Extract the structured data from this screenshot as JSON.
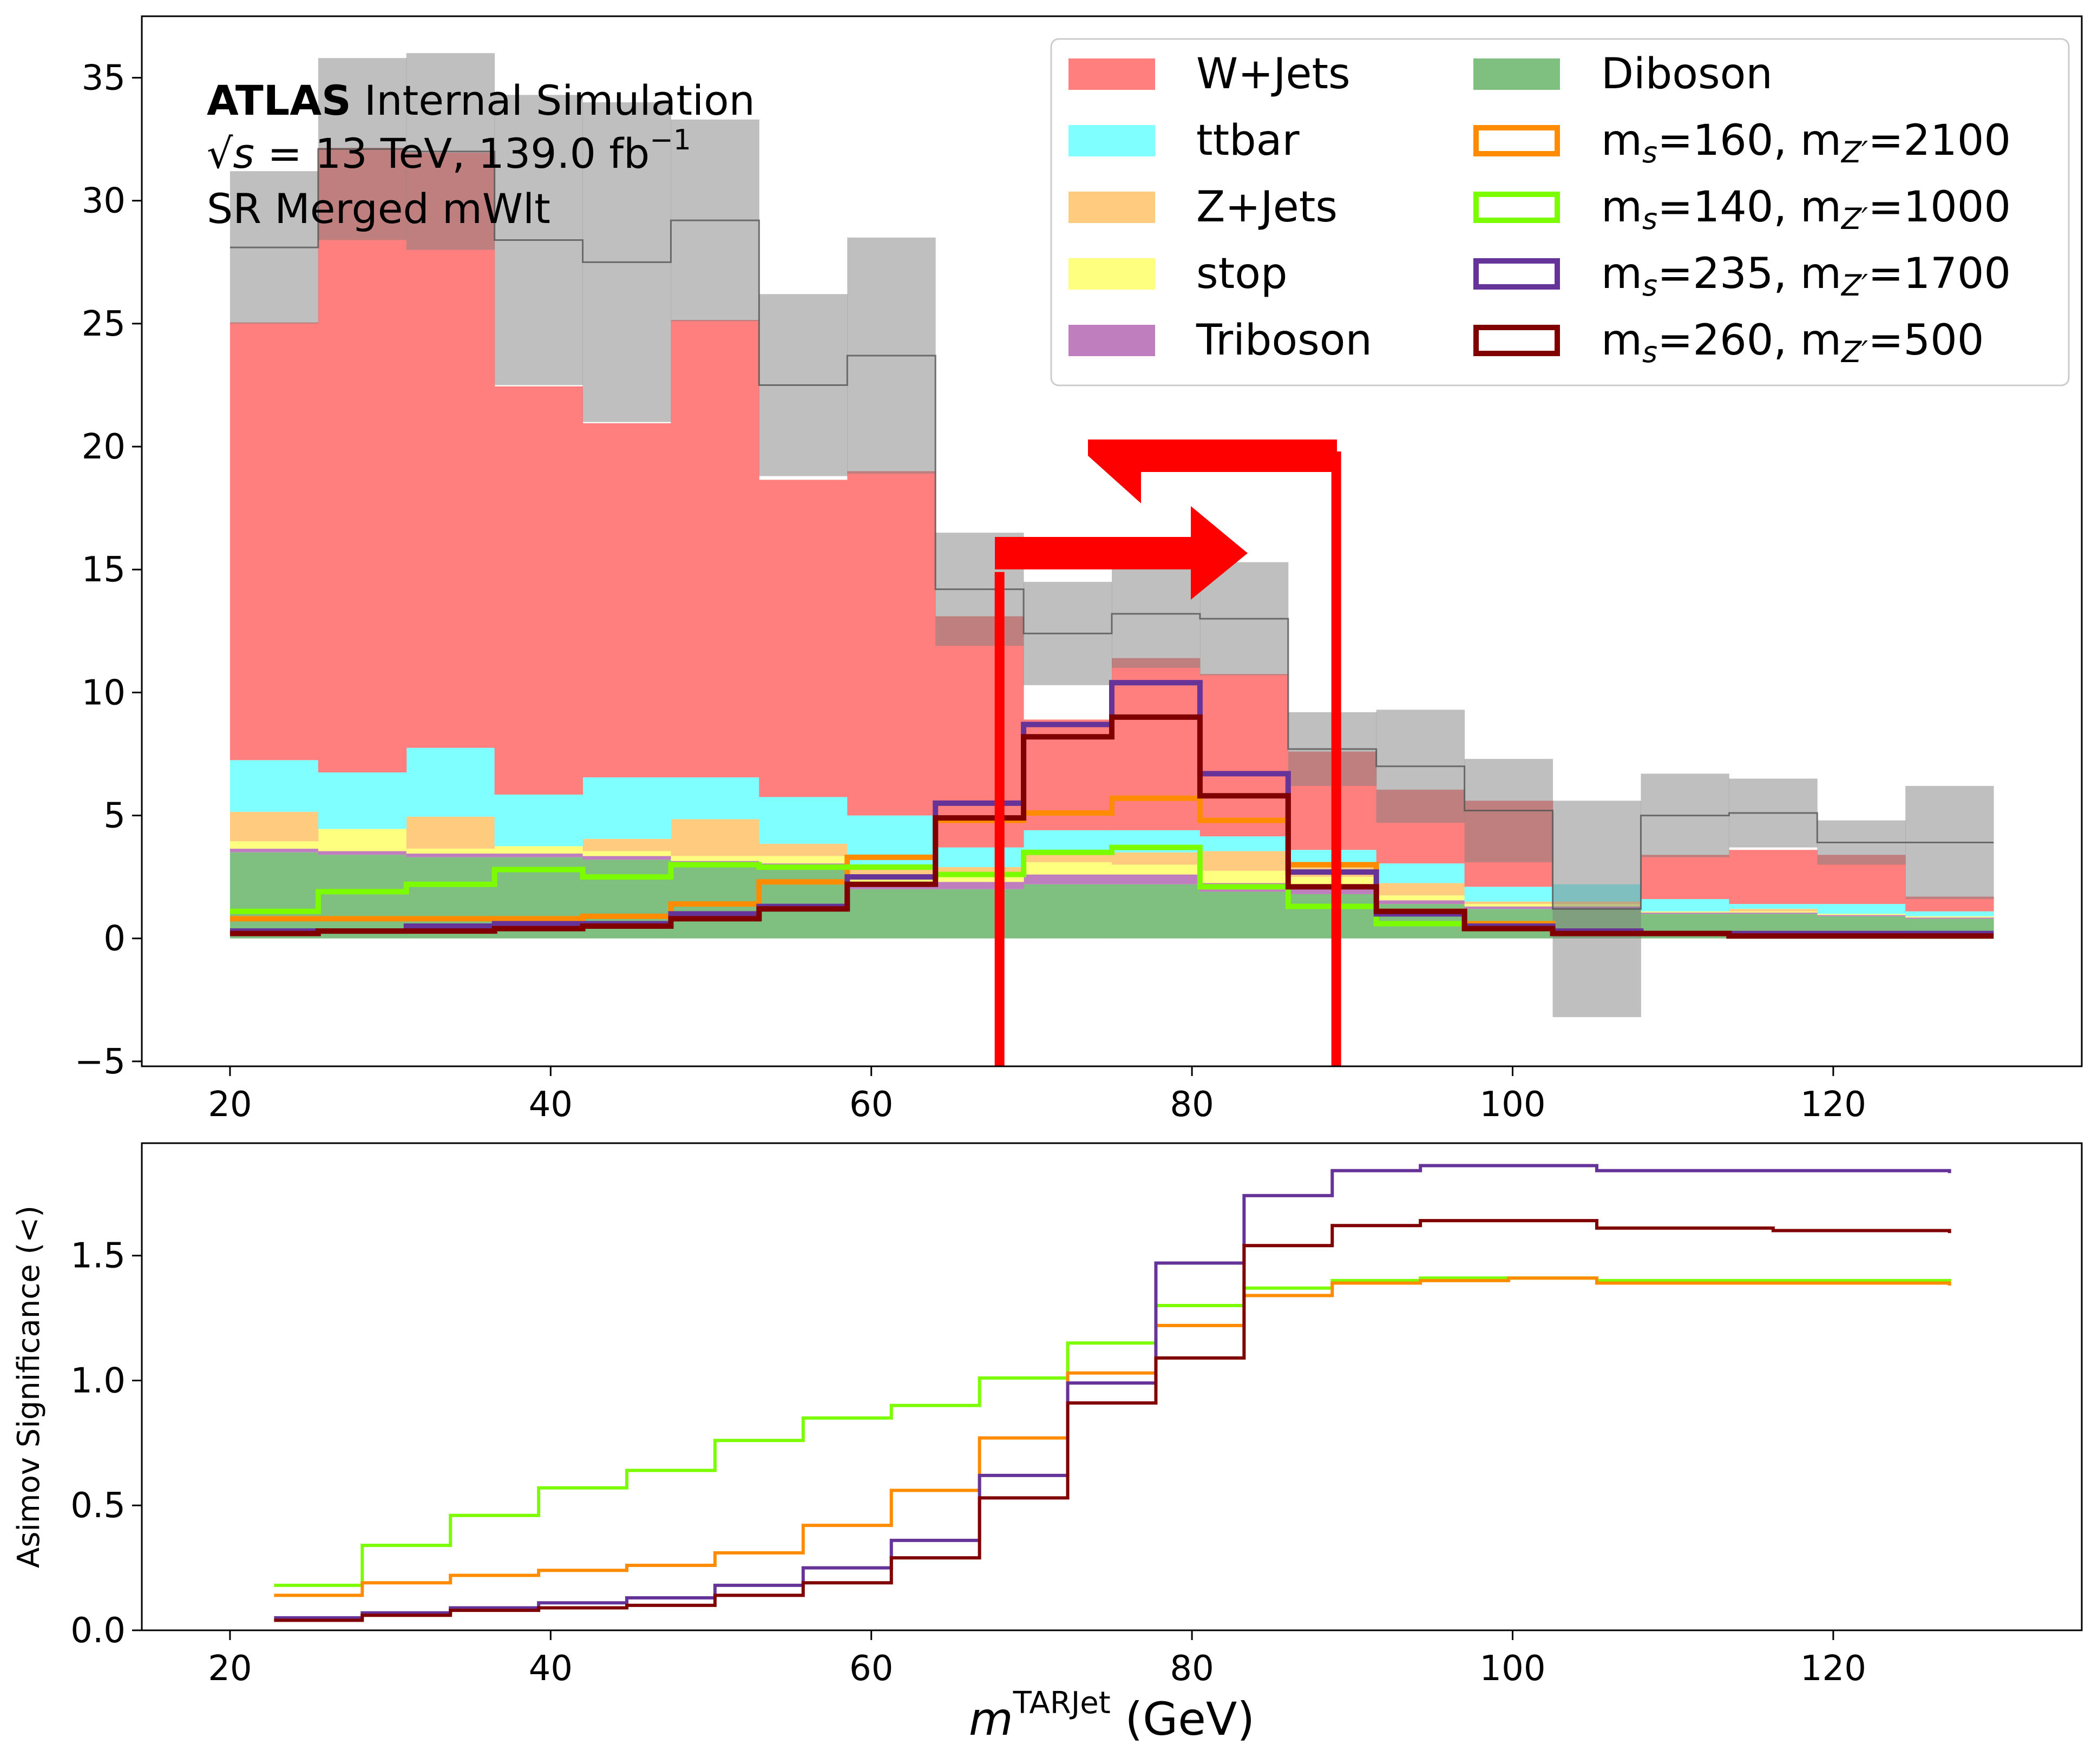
{
  "annotation": {
    "experiment": "ATLAS",
    "status": "Internal Simulation",
    "energy_prefix": "√s",
    "energy_value": " = 13 TeV, 139.0 fb",
    "lumi_exp": "−1",
    "region": "SR Merged mWlt"
  },
  "chart_data": [
    {
      "type": "stacked histogram",
      "xlim": [
        14.5,
        135.5
      ],
      "ylim": [
        -5.2,
        37.5
      ],
      "xticks": [
        20,
        40,
        60,
        80,
        100,
        120
      ],
      "yticks": [
        -5,
        0,
        5,
        10,
        15,
        20,
        25,
        30,
        35
      ],
      "ytick_labels": [
        "−5",
        "0",
        "5",
        "10",
        "15",
        "20",
        "25",
        "30",
        "35"
      ],
      "bin_edges": [
        20,
        25.5,
        31,
        36.5,
        42,
        47.5,
        53,
        58.5,
        64,
        69.5,
        75,
        80.5,
        86,
        91.5,
        97,
        102.5,
        108,
        113.5,
        119,
        124.5,
        130
      ],
      "stack": [
        {
          "name": "Diboson",
          "color": "#7fbf7f",
          "values": [
            3.5,
            3.4,
            3.3,
            3.3,
            3.2,
            3.0,
            2.9,
            2.0,
            2.0,
            2.2,
            2.2,
            1.9,
            1.8,
            1.4,
            1.2,
            1.2,
            1.0,
            1.0,
            0.9,
            0.8
          ]
        },
        {
          "name": "Triboson",
          "color": "#bf7fbf",
          "values": [
            0.15,
            0.15,
            0.15,
            0.15,
            0.15,
            0.15,
            0.15,
            0.2,
            0.3,
            0.4,
            0.4,
            0.35,
            0.3,
            0.15,
            0.1,
            0.1,
            0.05,
            0.05,
            0.05,
            0.05
          ]
        },
        {
          "name": "stop",
          "color": "#ffff7f",
          "values": [
            0.3,
            0.9,
            0.2,
            0.3,
            0.2,
            0.2,
            0.3,
            0.3,
            0.3,
            0.5,
            0.4,
            0.5,
            0.4,
            0.2,
            0.1,
            0.1,
            0.05,
            0.05,
            0.05,
            0.05
          ]
        },
        {
          "name": "Z+Jets",
          "color": "#ffcc7f",
          "values": [
            1.2,
            0.0,
            1.3,
            0.0,
            0.5,
            1.5,
            0.5,
            0.4,
            0.3,
            0.4,
            0.5,
            0.8,
            0.5,
            0.5,
            0.1,
            0.1,
            0.0,
            0.1,
            0.0,
            0.0
          ]
        },
        {
          "name": "ttbar",
          "color": "#7fffff",
          "values": [
            2.1,
            2.3,
            2.8,
            2.1,
            2.5,
            1.7,
            1.9,
            2.1,
            0.8,
            0.9,
            0.9,
            0.6,
            0.6,
            0.8,
            0.6,
            0.7,
            0.5,
            0.2,
            0.4,
            0.2
          ]
        },
        {
          "name": "W+Jets",
          "color": "#ff7f7f",
          "values": [
            17.8,
            25.4,
            24.2,
            16.6,
            14.4,
            18.6,
            12.9,
            14.0,
            9.4,
            4.5,
            7.0,
            6.6,
            4.0,
            3.0,
            3.5,
            0.0,
            1.8,
            2.2,
            2.0,
            0.6
          ]
        }
      ],
      "total": [
        28.1,
        32.1,
        32.0,
        28.4,
        27.5,
        29.2,
        22.5,
        23.7,
        14.2,
        12.4,
        13.2,
        13.0,
        7.7,
        7.0,
        5.2,
        1.2,
        5.0,
        5.1,
        3.9,
        3.9
      ],
      "uncertainty": [
        3.1,
        3.7,
        4.0,
        5.9,
        6.5,
        4.1,
        3.7,
        4.8,
        2.3,
        2.1,
        2.2,
        2.3,
        1.5,
        2.3,
        2.1,
        4.4,
        1.7,
        1.4,
        0.9,
        2.3
      ],
      "signals": [
        {
          "name": "m_s=160, m_Z'=2100",
          "color": "#ff8c00",
          "values": [
            0.8,
            0.8,
            0.8,
            0.8,
            0.9,
            1.4,
            2.3,
            3.3,
            4.8,
            5.1,
            5.7,
            4.8,
            3.0,
            1.1,
            0.6,
            0.3,
            0.2,
            0.2,
            0.2,
            0.1
          ]
        },
        {
          "name": "m_s=140, m_Z'=1000",
          "color": "#7cfc00",
          "values": [
            1.1,
            1.9,
            2.2,
            2.8,
            2.5,
            3.0,
            2.9,
            2.9,
            2.6,
            3.5,
            3.7,
            2.1,
            1.3,
            0.6,
            0.4,
            0.3,
            0.2,
            0.1,
            0.1,
            0.1
          ]
        },
        {
          "name": "m_s=235, m_Z'=1700",
          "color": "#663399",
          "values": [
            0.3,
            0.3,
            0.5,
            0.6,
            0.6,
            1.0,
            1.3,
            2.5,
            5.5,
            8.7,
            10.4,
            6.7,
            2.7,
            1.0,
            0.5,
            0.3,
            0.2,
            0.2,
            0.2,
            0.2
          ]
        },
        {
          "name": "m_s=260, m_Z'=500",
          "color": "#800000",
          "values": [
            0.2,
            0.3,
            0.3,
            0.4,
            0.5,
            0.8,
            1.2,
            2.2,
            4.9,
            8.2,
            9.0,
            5.8,
            2.1,
            1.1,
            0.4,
            0.2,
            0.2,
            0.1,
            0.1,
            0.1
          ]
        }
      ],
      "cut_lines": [
        68,
        89
      ],
      "cut_line_color": "#ff0000",
      "uncertainty_color": "#808080",
      "legend_position": "upper right",
      "legend": [
        {
          "label": "W+Jets",
          "color": "#ff7f7f",
          "kind": "fill"
        },
        {
          "label": "ttbar",
          "color": "#7fffff",
          "kind": "fill"
        },
        {
          "label": "Z+Jets",
          "color": "#ffcc7f",
          "kind": "fill"
        },
        {
          "label": "stop",
          "color": "#ffff7f",
          "kind": "fill"
        },
        {
          "label": "Triboson",
          "color": "#bf7fbf",
          "kind": "fill"
        },
        {
          "label": "Diboson",
          "color": "#7fbf7f",
          "kind": "fill"
        },
        {
          "label": "m_s=160, m_Z'=2100",
          "ms": "160",
          "mz": "2100",
          "color": "#ff8c00",
          "kind": "line"
        },
        {
          "label": "m_s=140, m_Z'=1000",
          "ms": "140",
          "mz": "1000",
          "color": "#7cfc00",
          "kind": "line"
        },
        {
          "label": "m_s=235, m_Z'=1700",
          "ms": "235",
          "mz": "1700",
          "color": "#663399",
          "kind": "line"
        },
        {
          "label": "m_s=260, m_Z'=500",
          "ms": "260",
          "mz": "500",
          "color": "#800000",
          "kind": "line"
        }
      ]
    },
    {
      "type": "line",
      "step": true,
      "ylabel": "Asimov Significance (<)",
      "xlabel_symbol": "m",
      "xlabel_sup": "TARJet",
      "xlabel_unit": " (GeV)",
      "xlim": [
        14.5,
        135.5
      ],
      "ylim": [
        0.0,
        1.95
      ],
      "xticks": [
        20,
        40,
        60,
        80,
        100,
        120
      ],
      "yticks": [
        0.0,
        0.5,
        1.0,
        1.5
      ],
      "ytick_labels": [
        "0.0",
        "0.5",
        "1.0",
        "1.5"
      ],
      "x": [
        22.75,
        28.25,
        33.75,
        39.25,
        44.75,
        50.25,
        55.75,
        61.25,
        66.75,
        72.25,
        77.75,
        83.25,
        88.75,
        94.25,
        99.75,
        105.25,
        110.75,
        116.25,
        121.75,
        127.25
      ],
      "series": [
        {
          "name": "m_s=140, m_Z'=1000",
          "color": "#7cfc00",
          "values": [
            0.18,
            0.34,
            0.46,
            0.57,
            0.64,
            0.76,
            0.85,
            0.9,
            1.01,
            1.15,
            1.3,
            1.37,
            1.4,
            1.41,
            1.41,
            1.4,
            1.4,
            1.4,
            1.4,
            1.39
          ]
        },
        {
          "name": "m_s=160, m_Z'=2100",
          "color": "#ff8c00",
          "values": [
            0.14,
            0.19,
            0.22,
            0.24,
            0.26,
            0.31,
            0.42,
            0.56,
            0.77,
            1.03,
            1.22,
            1.34,
            1.39,
            1.4,
            1.41,
            1.39,
            1.39,
            1.39,
            1.39,
            1.38
          ]
        },
        {
          "name": "m_s=235, m_Z'=1700",
          "color": "#663399",
          "values": [
            0.05,
            0.07,
            0.09,
            0.11,
            0.13,
            0.18,
            0.25,
            0.36,
            0.62,
            0.99,
            1.47,
            1.74,
            1.84,
            1.86,
            1.86,
            1.84,
            1.84,
            1.84,
            1.84,
            1.83
          ]
        },
        {
          "name": "m_s=260, m_Z'=500",
          "color": "#800000",
          "values": [
            0.04,
            0.06,
            0.08,
            0.09,
            0.1,
            0.14,
            0.19,
            0.29,
            0.53,
            0.91,
            1.09,
            1.54,
            1.62,
            1.64,
            1.64,
            1.61,
            1.61,
            1.6,
            1.6,
            1.59
          ]
        }
      ]
    }
  ]
}
